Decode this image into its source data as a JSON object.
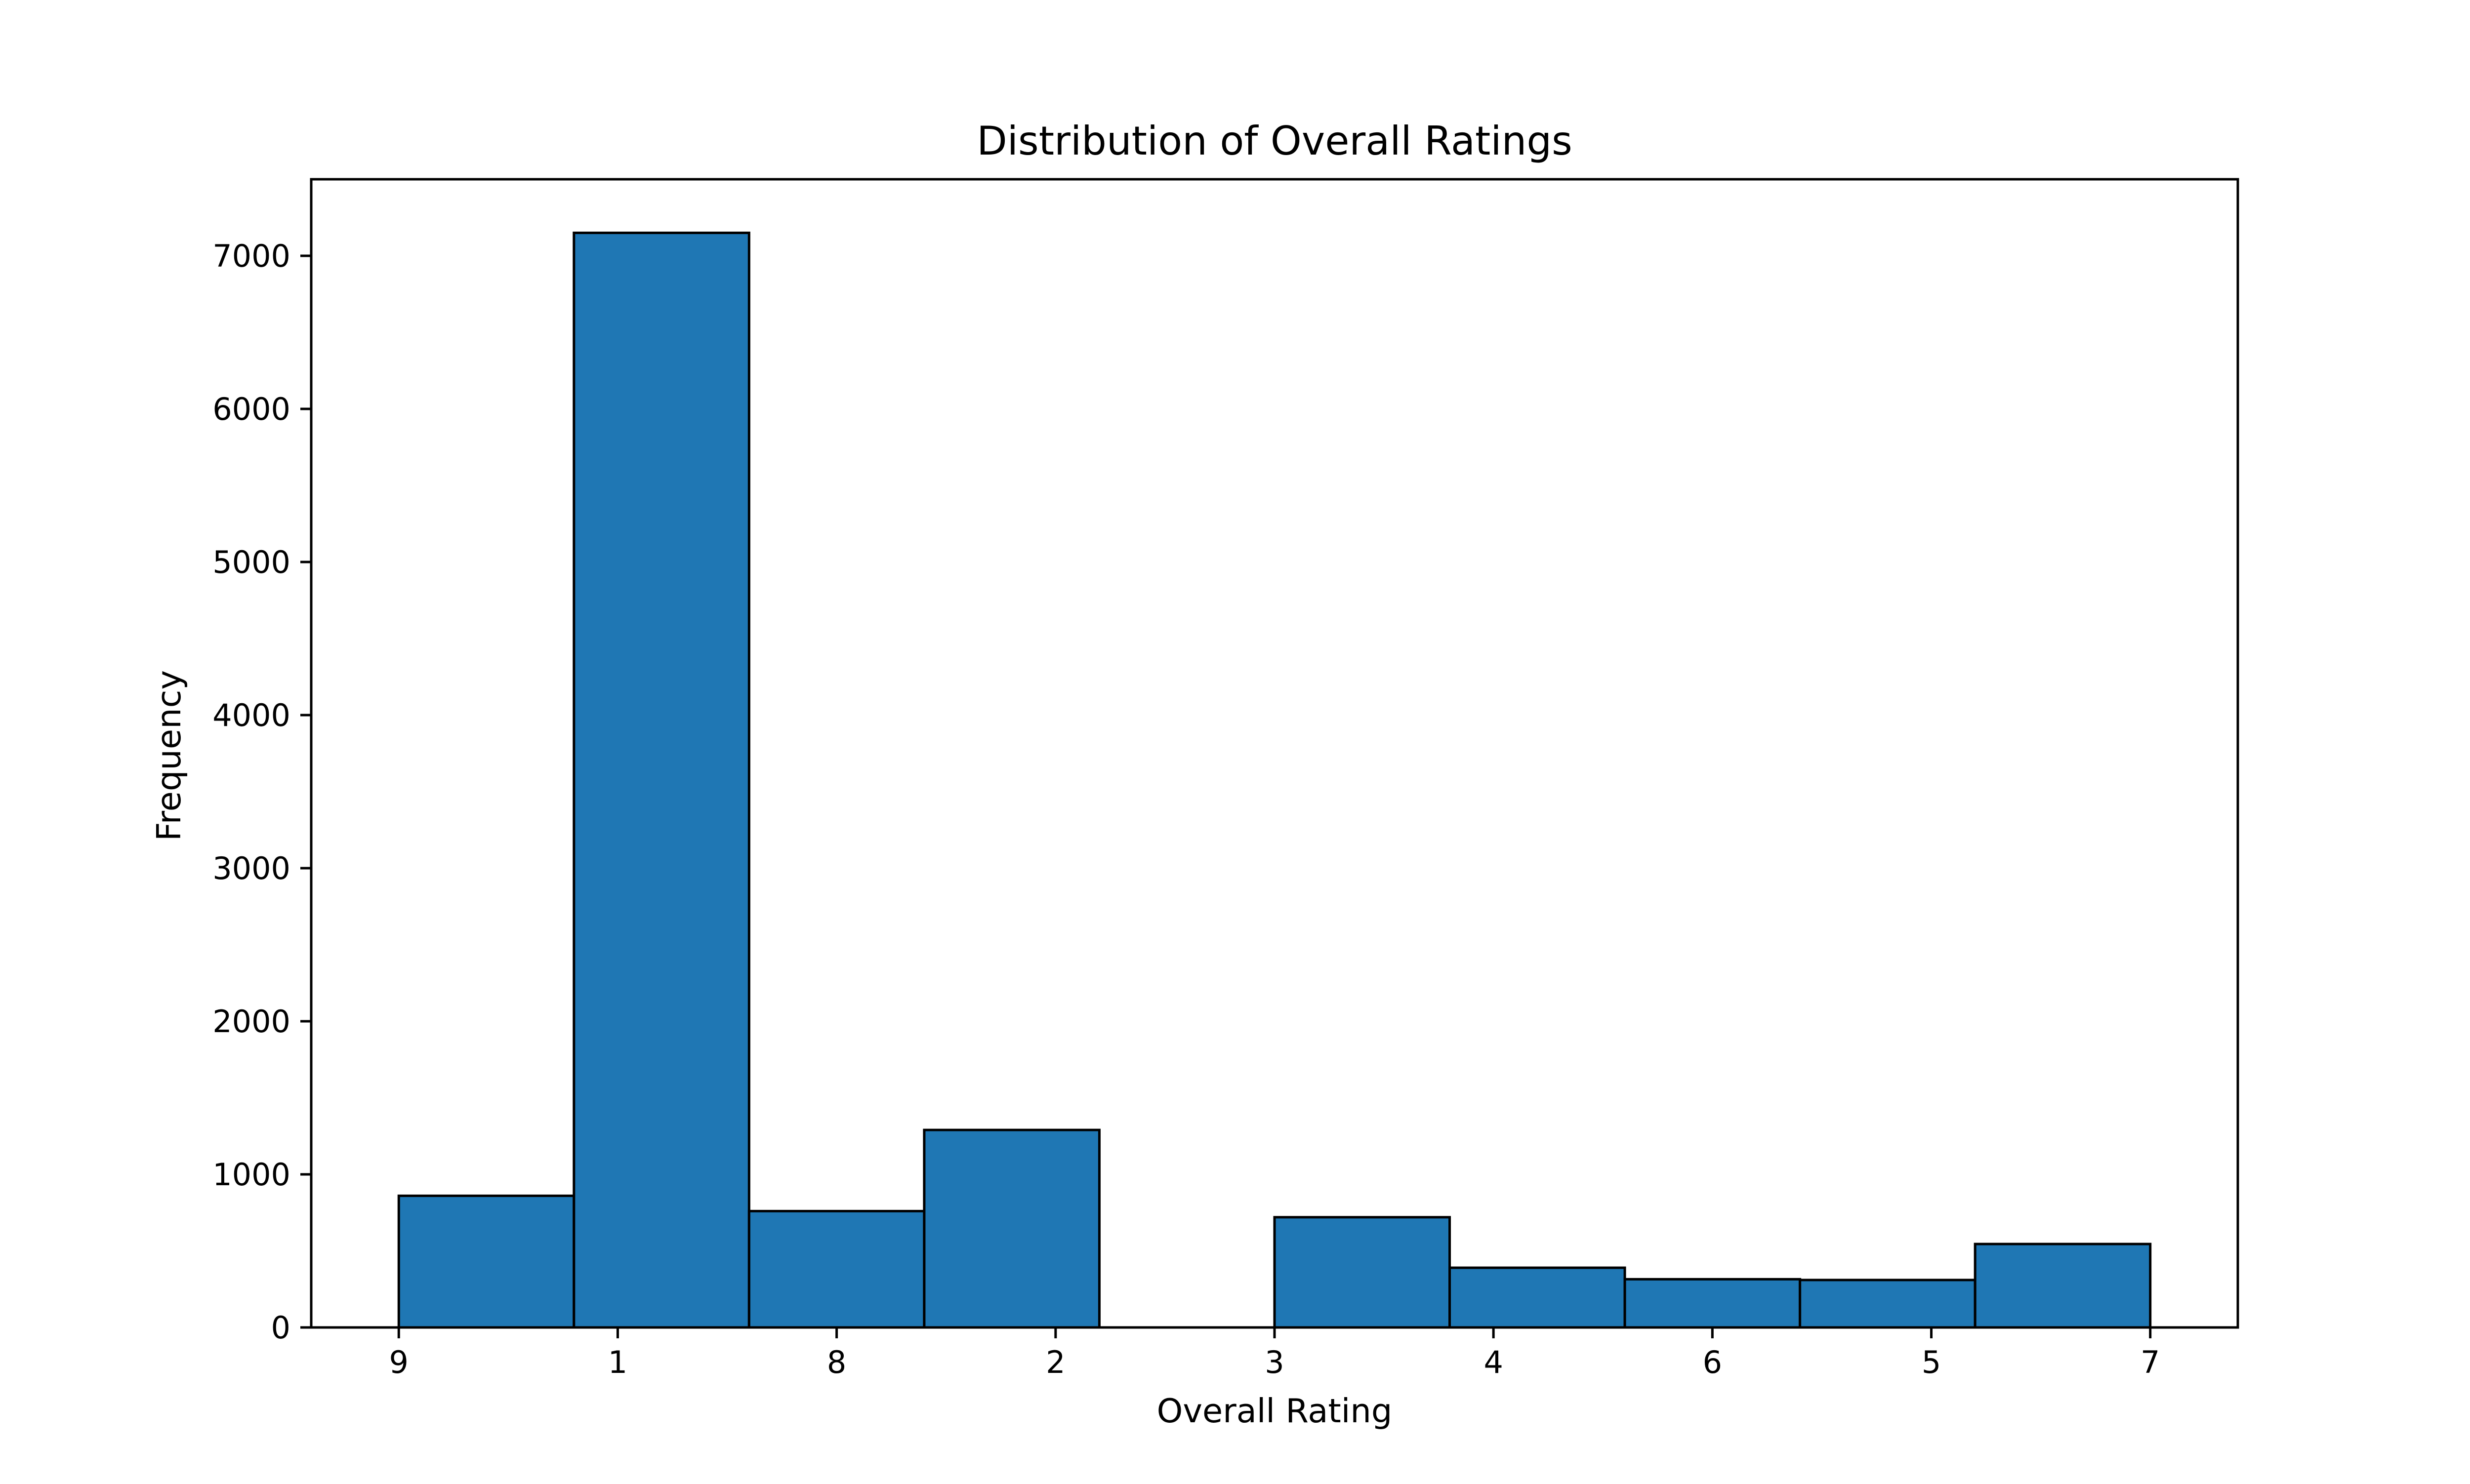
{
  "chart_data": {
    "type": "bar",
    "title": "Distribution of Overall Ratings",
    "xlabel": "Overall Rating",
    "ylabel": "Frequency",
    "x_tick_labels": [
      "9",
      "1",
      "8",
      "2",
      "3",
      "4",
      "6",
      "5",
      "7"
    ],
    "bins": [
      {
        "start": 0.0,
        "end": 0.8,
        "value": 860
      },
      {
        "start": 0.8,
        "end": 1.6,
        "value": 7150
      },
      {
        "start": 1.6,
        "end": 2.4,
        "value": 760
      },
      {
        "start": 2.4,
        "end": 3.2,
        "value": 1290
      },
      {
        "start": 3.2,
        "end": 4.0,
        "value": 0
      },
      {
        "start": 4.0,
        "end": 4.8,
        "value": 720
      },
      {
        "start": 4.8,
        "end": 5.6,
        "value": 390
      },
      {
        "start": 5.6,
        "end": 6.4,
        "value": 315
      },
      {
        "start": 6.4,
        "end": 7.2,
        "value": 310
      },
      {
        "start": 7.2,
        "end": 8.0,
        "value": 545
      }
    ],
    "xlim": [
      -0.4,
      8.4
    ],
    "ylim": [
      0,
      7500
    ],
    "yticks": [
      0,
      1000,
      2000,
      3000,
      4000,
      5000,
      6000,
      7000
    ],
    "grid": false,
    "colors": {
      "bar_fill": "#1f77b4",
      "bar_edge": "#000000"
    }
  }
}
